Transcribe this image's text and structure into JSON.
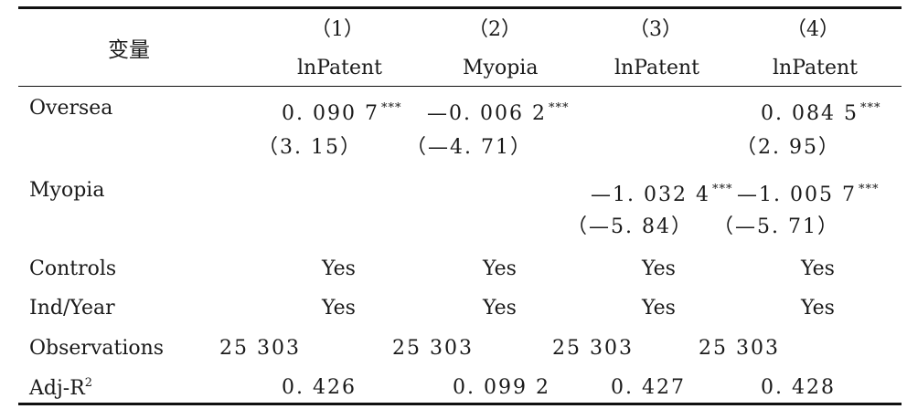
{
  "header": {
    "variable": "变量",
    "columns": [
      {
        "index": "（1）",
        "dep": "lnPatent"
      },
      {
        "index": "（2）",
        "dep": "Myopia"
      },
      {
        "index": "（3）",
        "dep": "lnPatent"
      },
      {
        "index": "（4）",
        "dep": "lnPatent"
      }
    ]
  },
  "rows": {
    "oversea": {
      "label": "Oversea",
      "c1": "0. 090 7",
      "c1_stars": "***",
      "c2": "—0. 006 2",
      "c2_stars": "***",
      "c4": "0. 084 5",
      "c4_stars": "***",
      "t1": "（3. 15）",
      "t2": "（—4. 71）",
      "t4": "（2. 95）"
    },
    "myopia": {
      "label": "Myopia",
      "c3": "—1. 032 4",
      "c3_stars": "***",
      "c4": "—1. 005 7",
      "c4_stars": "***",
      "t3": "（—5. 84）",
      "t4": "（—5. 71）"
    },
    "controls": {
      "label": "Controls",
      "vals": [
        "Yes",
        "Yes",
        "Yes",
        "Yes"
      ]
    },
    "indyear": {
      "label": "Ind/Year",
      "vals": [
        "Yes",
        "Yes",
        "Yes",
        "Yes"
      ]
    },
    "observations": {
      "label": "Observations",
      "vals": [
        "25 303",
        "25 303",
        "25 303",
        "25 303"
      ]
    },
    "adjr2": {
      "label": "Adj-R",
      "label_sup": "2",
      "vals": [
        "0. 426",
        "0. 099 2",
        "0. 427",
        "0. 428"
      ]
    }
  }
}
